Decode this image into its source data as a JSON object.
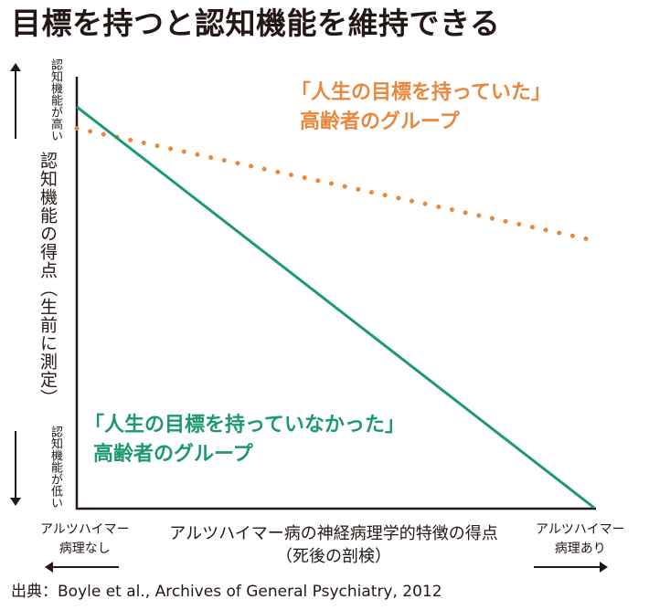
{
  "title": "目標を持つと認知機能を維持できる",
  "source": "出典：Boyle et al., Archives of General Psychiatry, 2012",
  "chart_data": {
    "type": "line",
    "title": "目標を持つと認知機能を維持できる",
    "ylabel": "認知機能の得点（生前に測定）",
    "y_high_label": "認知機能が高い",
    "y_low_label": "認知機能が低い",
    "xlabel_line1": "アルツハイマー病の神経病理学的特徴の得点",
    "xlabel_line2": "（死後の剖検）",
    "x_left_label": [
      "アルツハイマー",
      "病理なし"
    ],
    "x_right_label": [
      "アルツハイマー",
      "病理あり"
    ],
    "x": [
      0,
      1
    ],
    "xlim": [
      0,
      1
    ],
    "ylim": [
      0,
      1
    ],
    "series": [
      {
        "label_line1": "「人生の目標を持っていた」",
        "label_line2": "高齢者のグループ",
        "values": [
          0.88,
          0.62
        ],
        "color": "#e9873d",
        "style": "dotted"
      },
      {
        "label_line1": "「人生の目標を持っていなかった」",
        "label_line2": "高齢者のグループ",
        "values": [
          0.93,
          0.0
        ],
        "color": "#1c9a6e",
        "style": "solid"
      }
    ],
    "axis_color": "#231815"
  }
}
